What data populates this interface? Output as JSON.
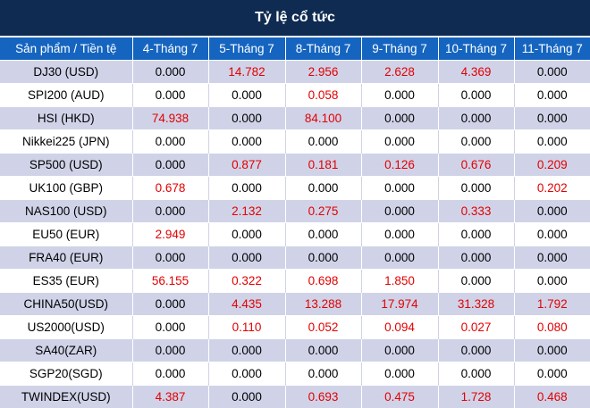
{
  "title": "Tỷ lệ cổ tức",
  "table": {
    "headers": [
      "Sản phẩm / Tiền tệ",
      "4-Tháng 7",
      "5-Tháng 7",
      "8-Tháng 7",
      "9-Tháng 7",
      "10-Tháng 7",
      "11-Tháng 7"
    ],
    "rows": [
      {
        "product": "DJ30 (USD)",
        "values": [
          "0.000",
          "14.782",
          "2.956",
          "2.628",
          "4.369",
          "0.000"
        ]
      },
      {
        "product": "SPI200 (AUD)",
        "values": [
          "0.000",
          "0.000",
          "0.058",
          "0.000",
          "0.000",
          "0.000"
        ]
      },
      {
        "product": "HSI (HKD)",
        "values": [
          "74.938",
          "0.000",
          "84.100",
          "0.000",
          "0.000",
          "0.000"
        ]
      },
      {
        "product": "Nikkei225 (JPN)",
        "values": [
          "0.000",
          "0.000",
          "0.000",
          "0.000",
          "0.000",
          "0.000"
        ]
      },
      {
        "product": "SP500 (USD)",
        "values": [
          "0.000",
          "0.877",
          "0.181",
          "0.126",
          "0.676",
          "0.209"
        ]
      },
      {
        "product": "UK100 (GBP)",
        "values": [
          "0.678",
          "0.000",
          "0.000",
          "0.000",
          "0.000",
          "0.202"
        ]
      },
      {
        "product": "NAS100 (USD)",
        "values": [
          "0.000",
          "2.132",
          "0.275",
          "0.000",
          "0.333",
          "0.000"
        ]
      },
      {
        "product": "EU50 (EUR)",
        "values": [
          "2.949",
          "0.000",
          "0.000",
          "0.000",
          "0.000",
          "0.000"
        ]
      },
      {
        "product": "FRA40 (EUR)",
        "values": [
          "0.000",
          "0.000",
          "0.000",
          "0.000",
          "0.000",
          "0.000"
        ]
      },
      {
        "product": "ES35 (EUR)",
        "values": [
          "56.155",
          "0.322",
          "0.698",
          "1.850",
          "0.000",
          "0.000"
        ]
      },
      {
        "product": "CHINA50(USD)",
        "values": [
          "0.000",
          "4.435",
          "13.288",
          "17.974",
          "31.328",
          "1.792"
        ]
      },
      {
        "product": "US2000(USD)",
        "values": [
          "0.000",
          "0.110",
          "0.052",
          "0.094",
          "0.027",
          "0.080"
        ]
      },
      {
        "product": "SA40(ZAR)",
        "values": [
          "0.000",
          "0.000",
          "0.000",
          "0.000",
          "0.000",
          "0.000"
        ]
      },
      {
        "product": "SGP20(SGD)",
        "values": [
          "0.000",
          "0.000",
          "0.000",
          "0.000",
          "0.000",
          "0.000"
        ]
      },
      {
        "product": "TWINDEX(USD)",
        "values": [
          "4.387",
          "0.000",
          "0.693",
          "0.475",
          "1.728",
          "0.468"
        ]
      }
    ]
  },
  "colors": {
    "title_bg": "#0f2b52",
    "header_bg": "#1565c0",
    "stripe_bg": "#d0d3e8",
    "positive_value": "#e30000",
    "zero_value": "#000000"
  }
}
